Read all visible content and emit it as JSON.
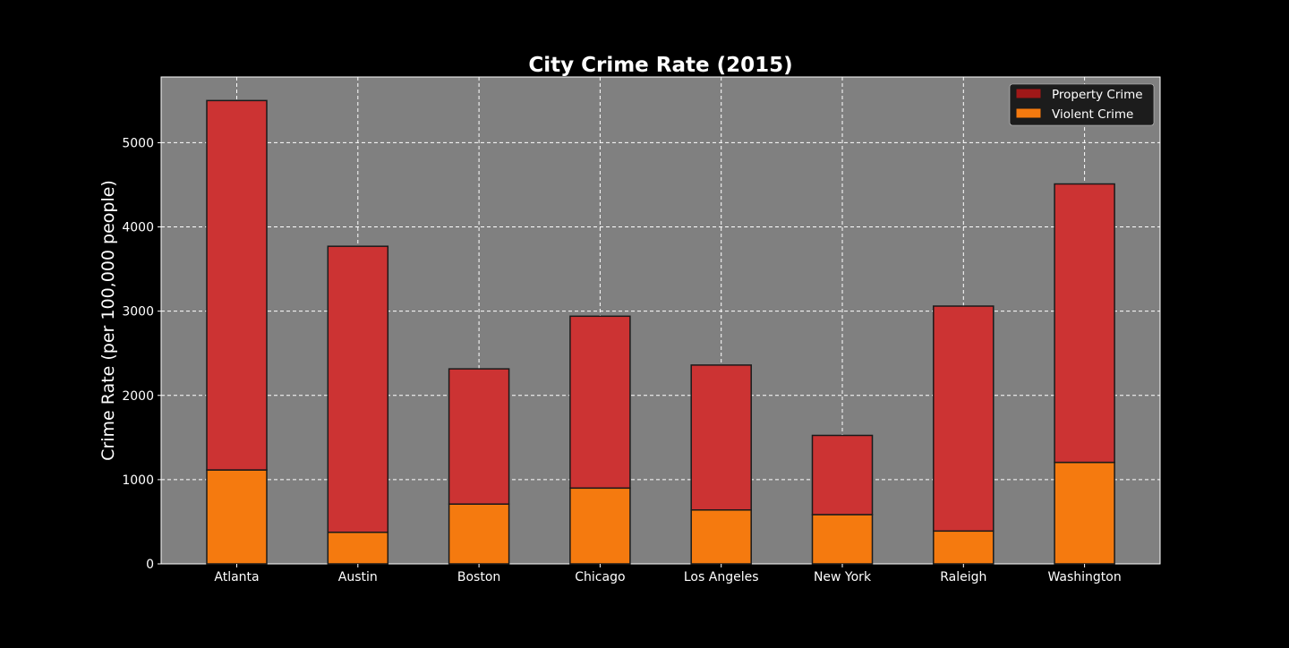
{
  "chart_data": {
    "type": "bar",
    "stacked": true,
    "title": "City Crime Rate (2015)",
    "xlabel": "",
    "ylabel": "Crime Rate (per 100,000 people)",
    "categories": [
      "Atlanta",
      "Austin",
      "Boston",
      "Chicago",
      "Los Angeles",
      "New York",
      "Raleigh",
      "Washington"
    ],
    "series": [
      {
        "name": "Violent Crime",
        "values": [
          1115,
          375,
          710,
          900,
          640,
          585,
          390,
          1205
        ],
        "color": "#f57a0f"
      },
      {
        "name": "Property Crime",
        "values": [
          4385,
          3395,
          1605,
          2040,
          1720,
          940,
          2670,
          3305
        ],
        "color": "#cc3333"
      }
    ],
    "ylim": [
      0,
      5780
    ],
    "yticks": [
      0,
      1000,
      2000,
      3000,
      4000,
      5000
    ],
    "grid": true,
    "legend_position": "top-right",
    "legend": [
      {
        "label": "Property Crime",
        "color": "#a01818"
      },
      {
        "label": "Violent Crime",
        "color": "#f57a0f"
      }
    ],
    "colors": {
      "figure_background": "#000000",
      "plot_background": "#808080",
      "text": "#ffffff",
      "grid": "#ffffff",
      "bar_edge": "#1a1a1a",
      "legend_background": "#1c1c1c"
    }
  }
}
